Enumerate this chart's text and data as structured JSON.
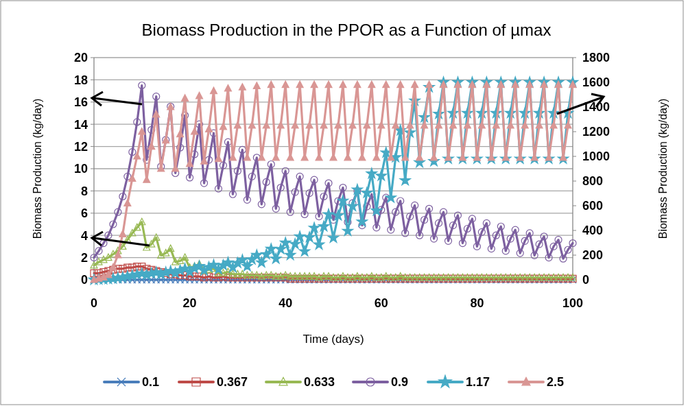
{
  "chart_data": {
    "type": "line",
    "title": "Biomass Production in the PPOR as a Function of µmax",
    "xlabel": "Time (days)",
    "ylabel": "Biomass Production (kg/day)",
    "y2label": "Biomass Production (kg/day)",
    "x": [
      0,
      1,
      2,
      3,
      4,
      5,
      6,
      7,
      8,
      9,
      10,
      11,
      12,
      13,
      14,
      15,
      16,
      17,
      18,
      19,
      20,
      21,
      22,
      23,
      24,
      25,
      26,
      27,
      28,
      29,
      30,
      31,
      32,
      33,
      34,
      35,
      36,
      37,
      38,
      39,
      40,
      41,
      42,
      43,
      44,
      45,
      46,
      47,
      48,
      49,
      50,
      51,
      52,
      53,
      54,
      55,
      56,
      57,
      58,
      59,
      60,
      61,
      62,
      63,
      64,
      65,
      66,
      67,
      68,
      69,
      70,
      71,
      72,
      73,
      74,
      75,
      76,
      77,
      78,
      79,
      80,
      81,
      82,
      83,
      84,
      85,
      86,
      87,
      88,
      89,
      90,
      91,
      92,
      93,
      94,
      95,
      96,
      97,
      98,
      99,
      100
    ],
    "xlim": [
      0,
      100
    ],
    "xticks": [
      0,
      20,
      40,
      60,
      80,
      100
    ],
    "ylim": [
      0,
      20
    ],
    "yticks": [
      0,
      2,
      4,
      6,
      8,
      10,
      12,
      14,
      16,
      18,
      20
    ],
    "y2lim": [
      0,
      1800
    ],
    "y2ticks": [
      0,
      200,
      400,
      600,
      800,
      1000,
      1200,
      1400,
      1600,
      1800
    ],
    "grid": "y",
    "legend": "bottom",
    "series": [
      {
        "name": "0.1",
        "color": "#4a7ebb",
        "marker": "cross",
        "values": [
          0,
          0,
          0,
          0,
          0,
          0,
          0,
          0,
          0,
          0,
          0,
          0,
          0,
          0,
          0,
          0,
          0,
          0,
          0,
          0,
          0,
          0,
          0,
          0,
          0,
          0,
          0,
          0,
          0,
          0,
          0,
          0,
          0,
          0,
          0,
          0,
          0,
          0,
          0,
          0,
          0,
          0,
          0,
          0,
          0,
          0,
          0,
          0,
          0,
          0,
          0,
          0,
          0,
          0,
          0,
          0,
          0,
          0,
          0,
          0,
          0,
          0,
          0,
          0,
          0,
          0,
          0,
          0,
          0,
          0,
          0,
          0,
          0,
          0,
          0,
          0,
          0,
          0,
          0,
          0,
          0,
          0,
          0,
          0,
          0,
          0,
          0,
          0,
          0,
          0,
          0,
          0,
          0,
          0,
          0,
          0,
          0,
          0,
          0,
          0,
          0
        ]
      },
      {
        "name": "0.367",
        "color": "#be4b48",
        "marker": "square",
        "values": [
          0.6,
          0.6,
          0.7,
          0.8,
          0.9,
          1.0,
          1.0,
          1.1,
          1.1,
          1.2,
          1.2,
          1.0,
          0.9,
          0.8,
          0.7,
          0.6,
          0.5,
          0.5,
          0.4,
          0.4,
          0.3,
          0.3,
          0.3,
          0.2,
          0.3,
          0.2,
          0.2,
          0.3,
          0.2,
          0.2,
          0.2,
          0.2,
          0.2,
          0.2,
          0.2,
          0.2,
          0.2,
          0.2,
          0.2,
          0.2,
          0.2,
          0.1,
          0.1,
          0.1,
          0.1,
          0.1,
          0.1,
          0.1,
          0.1,
          0.1,
          0.1,
          0.1,
          0.1,
          0.1,
          0.1,
          0.1,
          0.1,
          0.1,
          0.1,
          0.1,
          0.1,
          0.1,
          0.1,
          0.1,
          0.1,
          0.1,
          0.1,
          0.1,
          0.1,
          0.1,
          0.1,
          0.1,
          0.1,
          0.1,
          0.1,
          0.1,
          0.1,
          0.1,
          0.1,
          0.1,
          0.1,
          0.1,
          0.1,
          0.1,
          0.1,
          0.1,
          0.1,
          0.1,
          0.1,
          0.1,
          0.1,
          0.1,
          0.1,
          0.1,
          0.1,
          0.1,
          0.1,
          0.1,
          0.1,
          0.1,
          0.1
        ]
      },
      {
        "name": "0.633",
        "color": "#98b954",
        "marker": "triangle",
        "values": [
          1.3,
          1.6,
          1.8,
          2.0,
          2.3,
          2.6,
          3.0,
          3.6,
          4.2,
          4.7,
          5.2,
          2.9,
          3.2,
          3.8,
          2.2,
          2.4,
          2.8,
          1.6,
          1.7,
          2.0,
          1.1,
          1.2,
          1.4,
          0.8,
          0.9,
          1.0,
          0.6,
          0.6,
          0.7,
          0.5,
          0.5,
          0.5,
          0.4,
          0.4,
          0.4,
          0.3,
          0.4,
          0.4,
          0.3,
          0.3,
          0.4,
          0.3,
          0.3,
          0.3,
          0.3,
          0.3,
          0.3,
          0.2,
          0.3,
          0.3,
          0.2,
          0.2,
          0.3,
          0.2,
          0.2,
          0.3,
          0.2,
          0.2,
          0.3,
          0.2,
          0.2,
          0.3,
          0.2,
          0.2,
          0.3,
          0.2,
          0.2,
          0.2,
          0.2,
          0.2,
          0.2,
          0.2,
          0.2,
          0.2,
          0.2,
          0.2,
          0.2,
          0.2,
          0.2,
          0.2,
          0.2,
          0.2,
          0.2,
          0.2,
          0.2,
          0.2,
          0.2,
          0.2,
          0.2,
          0.2,
          0.2,
          0.2,
          0.2,
          0.2,
          0.2,
          0.2,
          0.2,
          0.2,
          0.2,
          0.2,
          0.2
        ]
      },
      {
        "name": "0.9",
        "color": "#7d60a0",
        "marker": "circle",
        "values": [
          2.0,
          2.6,
          3.3,
          4.0,
          5.0,
          6.1,
          7.5,
          9.3,
          11.5,
          14.2,
          17.5,
          10.8,
          13.5,
          16.5,
          10.2,
          12.6,
          15.6,
          9.6,
          11.9,
          14.8,
          9.2,
          11.3,
          14.0,
          8.7,
          10.8,
          13.2,
          8.2,
          10.3,
          12.4,
          7.7,
          9.8,
          11.7,
          7.2,
          9.3,
          11.0,
          6.8,
          8.8,
          10.4,
          6.4,
          8.3,
          9.8,
          6.1,
          7.9,
          9.3,
          5.9,
          7.8,
          9.0,
          5.7,
          7.5,
          8.7,
          5.4,
          7.1,
          8.3,
          5.2,
          6.9,
          8.0,
          4.9,
          6.6,
          7.7,
          4.7,
          6.3,
          7.4,
          4.5,
          6.1,
          7.1,
          4.2,
          5.7,
          6.7,
          4.0,
          5.4,
          6.4,
          3.7,
          5.1,
          6.1,
          3.5,
          4.9,
          5.8,
          3.3,
          4.6,
          5.5,
          3.0,
          4.3,
          5.1,
          2.8,
          4.0,
          4.8,
          2.6,
          3.7,
          4.5,
          2.4,
          3.5,
          4.2,
          2.2,
          3.2,
          3.9,
          2.0,
          3.0,
          3.6,
          1.9,
          2.7,
          3.3
        ]
      },
      {
        "name": "1.17",
        "color": "#46aac5",
        "marker": "star",
        "axis": "y2",
        "values": [
          0,
          2,
          4,
          6,
          10,
          15,
          20,
          28,
          35,
          42,
          50,
          40,
          52,
          60,
          45,
          60,
          70,
          55,
          76,
          90,
          65,
          92,
          110,
          75,
          102,
          120,
          85,
          118,
          140,
          100,
          136,
          160,
          110,
          164,
          200,
          140,
          206,
          250,
          170,
          248,
          300,
          200,
          290,
          350,
          230,
          344,
          420,
          285,
          432,
          530,
          340,
          520,
          640,
          395,
          596,
          730,
          470,
          704,
          860,
          560,
          842,
          1030,
          665,
          992,
          1210,
          805,
          1192,
          1450,
          950,
          1316,
          1560,
          960,
          1344,
          1600,
          980,
          1350,
          1600,
          980,
          1350,
          1600,
          980,
          1350,
          1600,
          980,
          1350,
          1600,
          980,
          1350,
          1600,
          980,
          1350,
          1600,
          980,
          1350,
          1600,
          980,
          1350,
          1600,
          980,
          1350,
          1600
        ]
      },
      {
        "name": "2.5",
        "color": "#d99694",
        "marker": "triangle",
        "axis": "y2",
        "values": [
          0,
          10,
          20,
          40,
          100,
          200,
          370,
          620,
          820,
          1000,
          1200,
          810,
          1080,
          1340,
          900,
          1130,
          1400,
          900,
          1180,
          1470,
          940,
          1200,
          1490,
          960,
          1220,
          1530,
          980,
          1240,
          1550,
          990,
          1250,
          1560,
          990,
          1250,
          1570,
          990,
          1250,
          1580,
          990,
          1250,
          1580,
          990,
          1250,
          1580,
          990,
          1250,
          1580,
          990,
          1250,
          1580,
          990,
          1250,
          1580,
          990,
          1250,
          1580,
          990,
          1250,
          1580,
          990,
          1250,
          1580,
          990,
          1250,
          1580,
          990,
          1250,
          1580,
          990,
          1250,
          1580,
          990,
          1250,
          1580,
          990,
          1250,
          1580,
          990,
          1250,
          1580,
          990,
          1250,
          1580,
          990,
          1250,
          1580,
          990,
          1250,
          1580,
          990,
          1250,
          1580,
          990,
          1250,
          1580,
          990,
          1250,
          1580,
          990,
          1250,
          1580
        ]
      }
    ]
  }
}
